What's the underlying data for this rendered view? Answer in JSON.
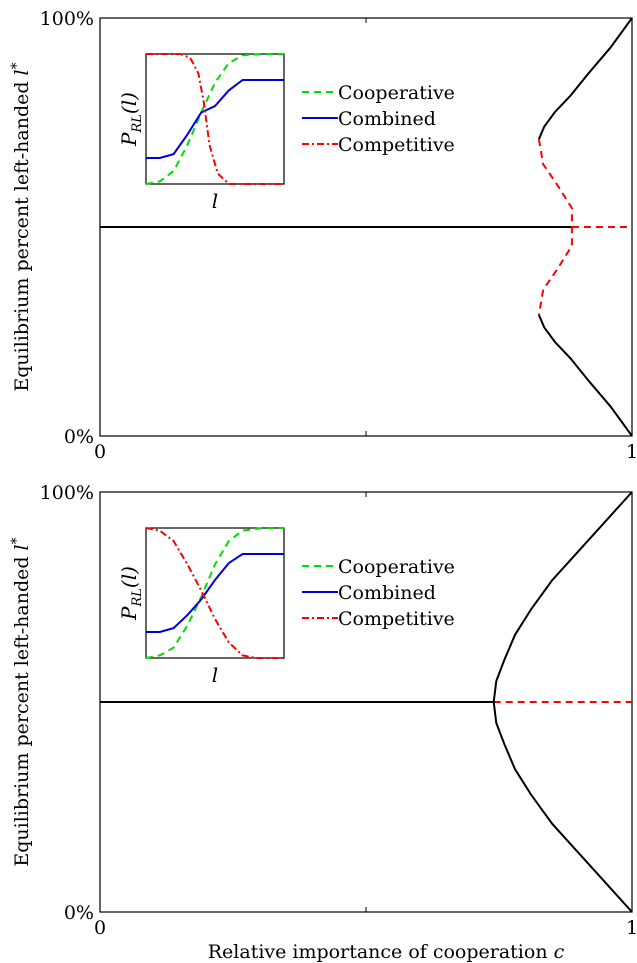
{
  "chart_data": [
    {
      "type": "line",
      "panel": "top",
      "xlabel": "",
      "ylabel": "Equilibrium percent left-handed l*",
      "xlim": [
        0,
        1
      ],
      "ylim": [
        0,
        100
      ],
      "x_ticks": [
        {
          "value": 0,
          "label": "0"
        },
        {
          "value": 1,
          "label": "1"
        }
      ],
      "y_ticks": [
        {
          "value": 0,
          "label": "0%"
        },
        {
          "value": 100,
          "label": "100%"
        }
      ],
      "grid": false,
      "series": [
        {
          "style": "stable",
          "color": "#000000",
          "dash": "solid",
          "points": [
            [
              0,
              50
            ],
            [
              0.887,
              50
            ]
          ]
        },
        {
          "style": "unstable",
          "color": "#ff0000",
          "dash": "dashed",
          "points": [
            [
              0.887,
              50
            ],
            [
              1,
              50
            ]
          ]
        },
        {
          "style": "stable",
          "color": "#000000",
          "dash": "solid",
          "points": [
            [
              1,
              100
            ],
            [
              0.96,
              93
            ],
            [
              0.92,
              87
            ],
            [
              0.885,
              81.5
            ],
            [
              0.855,
              77.5
            ],
            [
              0.835,
              74
            ],
            [
              0.825,
              71
            ]
          ]
        },
        {
          "style": "unstable",
          "color": "#ff0000",
          "dash": "dashed",
          "points": [
            [
              0.825,
              71
            ],
            [
              0.833,
              65
            ],
            [
              0.86,
              60
            ],
            [
              0.887,
              54.5
            ],
            [
              0.887,
              50
            ],
            [
              0.887,
              45.5
            ],
            [
              0.86,
              40
            ],
            [
              0.833,
              35
            ],
            [
              0.825,
              29
            ]
          ]
        },
        {
          "style": "stable",
          "color": "#000000",
          "dash": "solid",
          "points": [
            [
              0.825,
              29
            ],
            [
              0.835,
              26
            ],
            [
              0.855,
              22.5
            ],
            [
              0.885,
              18.5
            ],
            [
              0.92,
              13
            ],
            [
              0.96,
              7
            ],
            [
              1,
              0
            ]
          ]
        }
      ],
      "inset": {
        "ylabel": "P_RL(l)",
        "xlabel": "l",
        "legend": [
          {
            "name": "Cooperative",
            "color": "#00dd00",
            "dash": "dashed"
          },
          {
            "name": "Combined",
            "color": "#0000dd",
            "dash": "solid"
          },
          {
            "name": "Competitive",
            "color": "#ff0000",
            "dash": "dashdot"
          }
        ],
        "curves": {
          "cooperative": [
            [
              0,
              0.0
            ],
            [
              0.1,
              0.02
            ],
            [
              0.2,
              0.1
            ],
            [
              0.3,
              0.3
            ],
            [
              0.4,
              0.55
            ],
            [
              0.5,
              0.78
            ],
            [
              0.6,
              0.93
            ],
            [
              0.7,
              0.99
            ],
            [
              0.85,
              1.0
            ],
            [
              1,
              1.0
            ]
          ],
          "combined": [
            [
              0,
              0.2
            ],
            [
              0.1,
              0.2
            ],
            [
              0.2,
              0.23
            ],
            [
              0.3,
              0.38
            ],
            [
              0.4,
              0.55
            ],
            [
              0.5,
              0.6
            ],
            [
              0.6,
              0.72
            ],
            [
              0.7,
              0.8
            ],
            [
              0.8,
              0.8
            ],
            [
              1,
              0.8
            ]
          ],
          "competitive": [
            [
              0,
              1.0
            ],
            [
              0.25,
              1.0
            ],
            [
              0.32,
              0.97
            ],
            [
              0.38,
              0.85
            ],
            [
              0.42,
              0.62
            ],
            [
              0.46,
              0.3
            ],
            [
              0.52,
              0.08
            ],
            [
              0.6,
              0.0
            ],
            [
              1,
              0.0
            ]
          ]
        }
      }
    },
    {
      "type": "line",
      "panel": "bottom",
      "xlabel": "Relative importance of cooperation c",
      "ylabel": "Equilibrium percent left-handed l*",
      "xlim": [
        0,
        1
      ],
      "ylim": [
        0,
        100
      ],
      "x_ticks": [
        {
          "value": 0,
          "label": "0"
        },
        {
          "value": 1,
          "label": "1"
        }
      ],
      "y_ticks": [
        {
          "value": 0,
          "label": "0%"
        },
        {
          "value": 100,
          "label": "100%"
        }
      ],
      "grid": false,
      "series": [
        {
          "style": "stable",
          "color": "#000000",
          "dash": "solid",
          "points": [
            [
              0,
              50
            ],
            [
              0.74,
              50
            ]
          ]
        },
        {
          "style": "unstable",
          "color": "#ff0000",
          "dash": "dashed",
          "points": [
            [
              0.74,
              50
            ],
            [
              1,
              50
            ]
          ]
        },
        {
          "style": "stable",
          "color": "#000000",
          "dash": "solid",
          "points": [
            [
              1,
              100
            ],
            [
              0.95,
              93
            ],
            [
              0.9,
              86
            ],
            [
              0.85,
              79
            ],
            [
              0.81,
              72
            ],
            [
              0.78,
              66
            ],
            [
              0.76,
              60
            ],
            [
              0.745,
              55
            ],
            [
              0.74,
              50
            ],
            [
              0.745,
              45
            ],
            [
              0.76,
              40
            ],
            [
              0.78,
              34
            ],
            [
              0.81,
              28
            ],
            [
              0.85,
              21
            ],
            [
              0.9,
              14
            ],
            [
              0.95,
              7
            ],
            [
              1,
              0
            ]
          ]
        }
      ],
      "inset": {
        "ylabel": "P_RL(l)",
        "xlabel": "l",
        "legend": [
          {
            "name": "Cooperative",
            "color": "#00dd00",
            "dash": "dashed"
          },
          {
            "name": "Combined",
            "color": "#0000dd",
            "dash": "solid"
          },
          {
            "name": "Competitive",
            "color": "#ff0000",
            "dash": "dashdot"
          }
        ],
        "curves": {
          "cooperative": [
            [
              0,
              0.0
            ],
            [
              0.1,
              0.02
            ],
            [
              0.2,
              0.08
            ],
            [
              0.3,
              0.25
            ],
            [
              0.4,
              0.47
            ],
            [
              0.5,
              0.72
            ],
            [
              0.6,
              0.9
            ],
            [
              0.7,
              0.98
            ],
            [
              0.85,
              1.0
            ],
            [
              1,
              1.0
            ]
          ],
          "combined": [
            [
              0,
              0.2
            ],
            [
              0.1,
              0.2
            ],
            [
              0.2,
              0.23
            ],
            [
              0.3,
              0.33
            ],
            [
              0.4,
              0.45
            ],
            [
              0.5,
              0.6
            ],
            [
              0.6,
              0.73
            ],
            [
              0.7,
              0.8
            ],
            [
              0.8,
              0.8
            ],
            [
              1,
              0.8
            ]
          ],
          "competitive": [
            [
              0,
              1.0
            ],
            [
              0.1,
              0.98
            ],
            [
              0.2,
              0.9
            ],
            [
              0.3,
              0.72
            ],
            [
              0.4,
              0.52
            ],
            [
              0.5,
              0.3
            ],
            [
              0.6,
              0.12
            ],
            [
              0.7,
              0.02
            ],
            [
              0.8,
              0.0
            ],
            [
              1,
              0.0
            ]
          ]
        }
      }
    }
  ]
}
